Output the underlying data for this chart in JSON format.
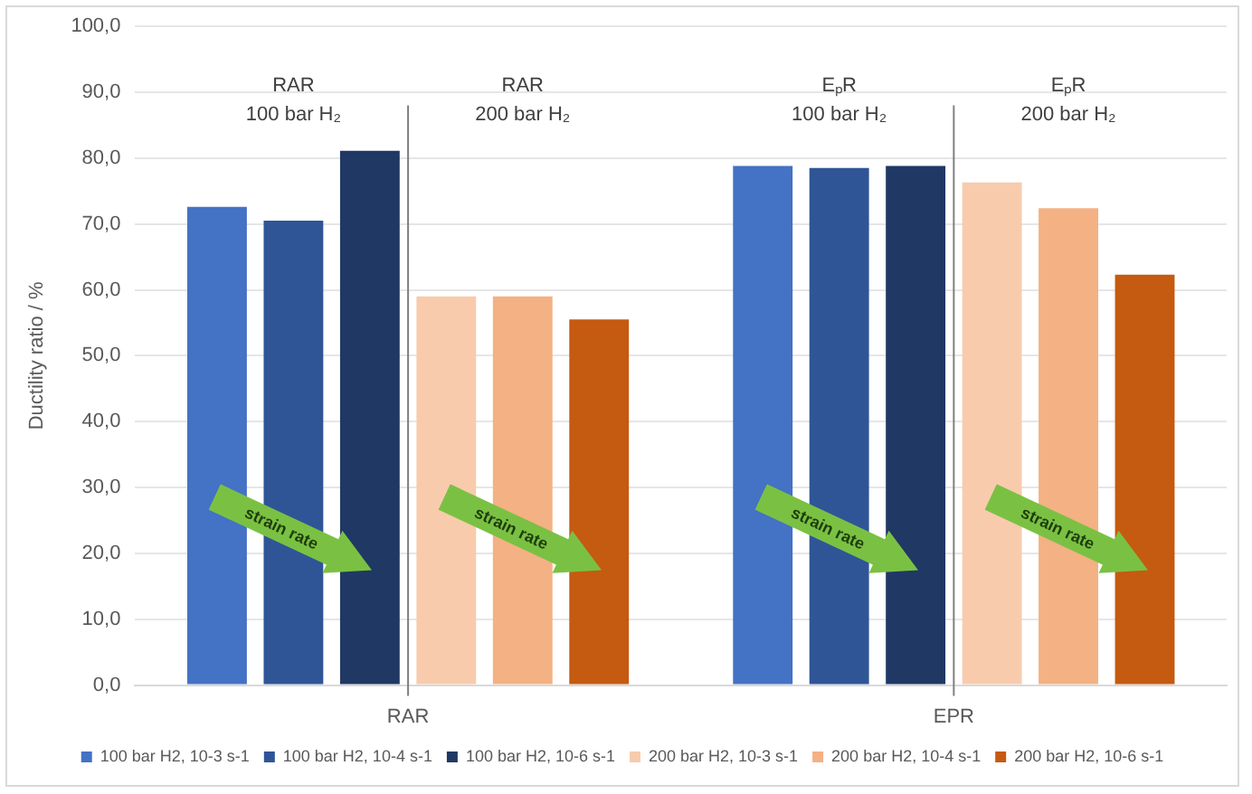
{
  "chart_data": {
    "type": "bar",
    "ylabel": "Ductility ratio / %",
    "categories": [
      "RAR",
      "EPR"
    ],
    "series": [
      {
        "name": "100 bar H2, 10-3 s-1",
        "color": "#4472c4",
        "values": [
          72.6,
          78.8
        ]
      },
      {
        "name": "100 bar H2, 10-4 s-1",
        "color": "#2f5597",
        "values": [
          70.5,
          78.5
        ]
      },
      {
        "name": "100 bar H2, 10-6 s-1",
        "color": "#203864",
        "values": [
          81.1,
          78.8
        ]
      },
      {
        "name": "200 bar H2, 10-3 s-1",
        "color": "#f8cbad",
        "values": [
          59.0,
          76.3
        ]
      },
      {
        "name": "200 bar H2, 10-4 s-1",
        "color": "#f4b183",
        "values": [
          59.0,
          72.4
        ]
      },
      {
        "name": "200 bar H2, 10-6 s-1",
        "color": "#c55a11",
        "values": [
          55.5,
          62.3
        ]
      }
    ],
    "ylim": [
      0,
      100
    ],
    "yticks": [
      {
        "value": 0,
        "label": "0,0"
      },
      {
        "value": 10,
        "label": "10,0"
      },
      {
        "value": 20,
        "label": "20,0"
      },
      {
        "value": 30,
        "label": "30,0"
      },
      {
        "value": 40,
        "label": "40,0"
      },
      {
        "value": 50,
        "label": "50,0"
      },
      {
        "value": 60,
        "label": "60,0"
      },
      {
        "value": 70,
        "label": "70,0"
      },
      {
        "value": 80,
        "label": "80,0"
      },
      {
        "value": 90,
        "label": "90,0"
      },
      {
        "value": 100,
        "label": "100,0"
      }
    ],
    "grid": "y",
    "legend": "bottom",
    "ref_lines": [
      {
        "axis": "x",
        "value": "RAR",
        "color": "#7f7f7f"
      },
      {
        "axis": "x",
        "value": "EPR",
        "color": "#7f7f7f"
      }
    ],
    "annotations": [
      "RAR\n100 bar H₂",
      "RAR\n200 bar H₂",
      "EₚR\n100 bar H₂",
      "EₚR\n200 bar H₂",
      "strain rate",
      "strain rate",
      "strain rate",
      "strain rate"
    ]
  }
}
